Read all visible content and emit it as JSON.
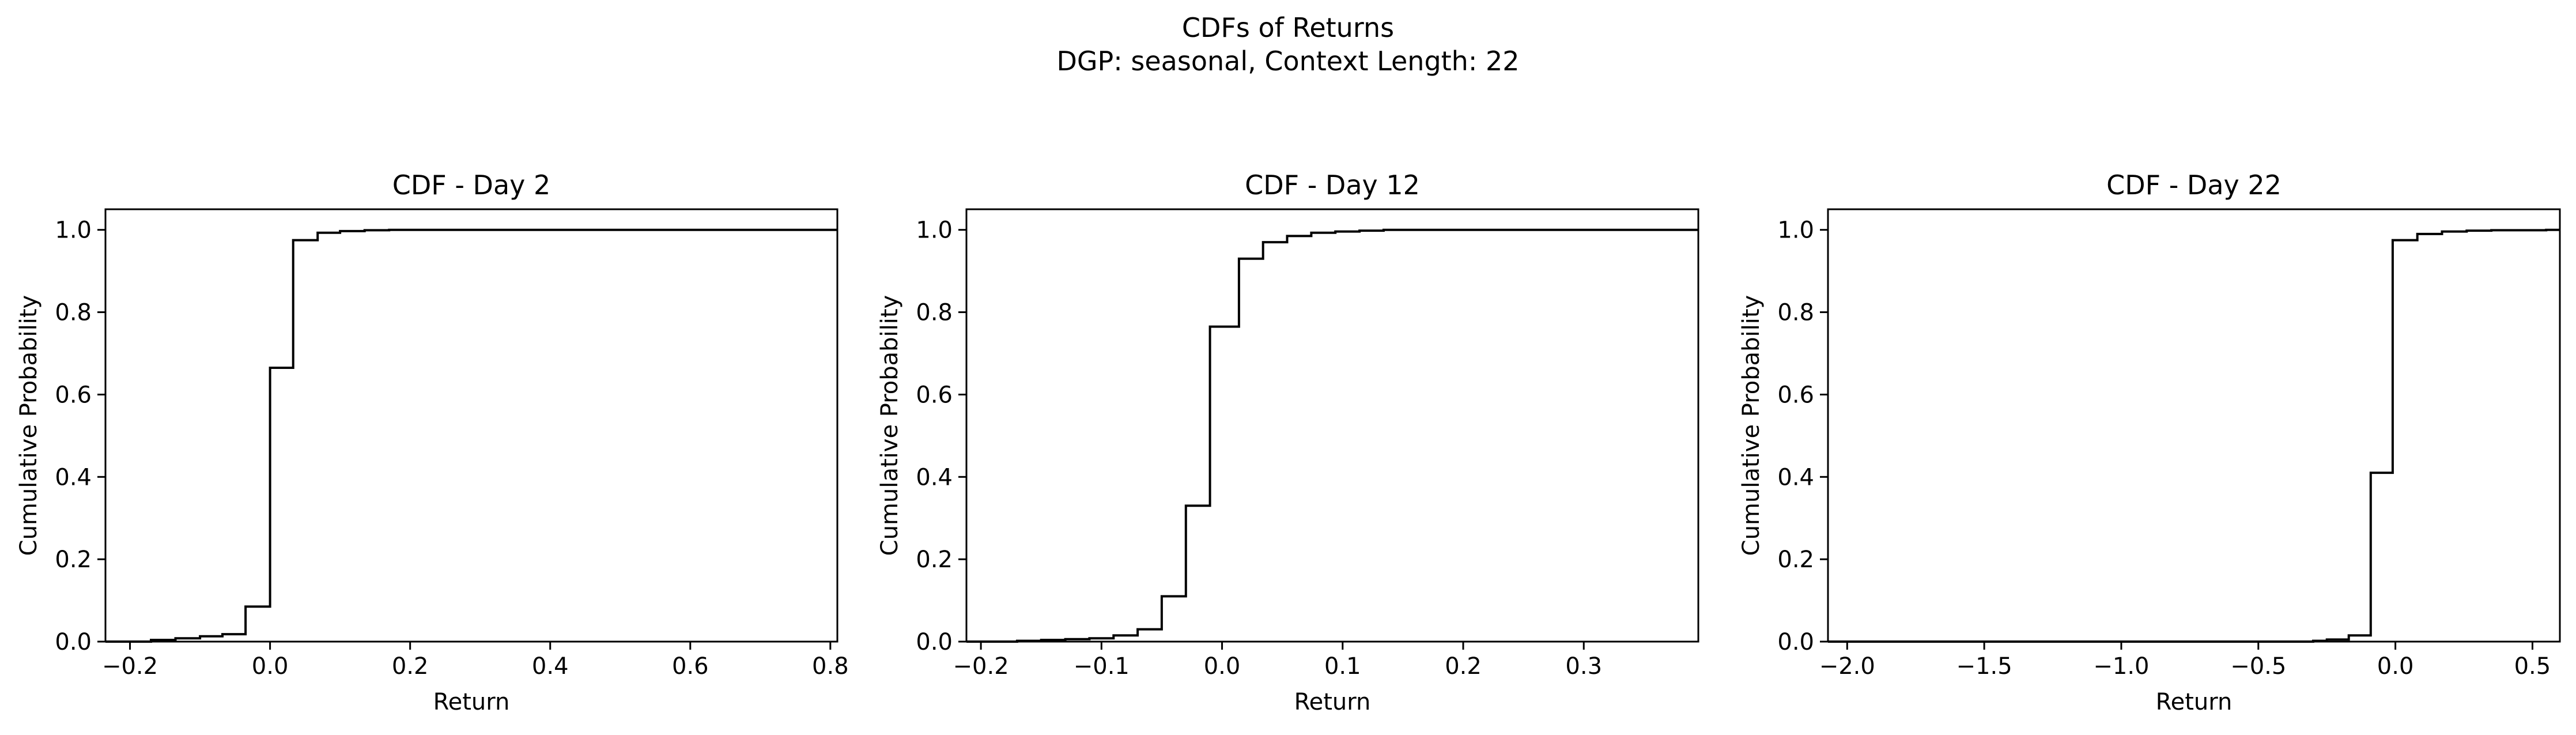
{
  "figure": {
    "title_line1": "CDFs of Returns",
    "title_line2": "DGP: seasonal, Context Length: 22"
  },
  "chart_data": [
    {
      "type": "line",
      "step": "post",
      "title": "CDF - Day 2",
      "xlabel": "Return",
      "ylabel": "Cumulative Probability",
      "xlim": [
        -0.235,
        0.81
      ],
      "ylim": [
        0,
        1.05
      ],
      "xticks": [
        -0.2,
        0.0,
        0.2,
        0.4,
        0.6,
        0.8
      ],
      "xtick_labels": [
        "−0.2",
        "0.0",
        "0.2",
        "0.4",
        "0.6",
        "0.8"
      ],
      "yticks": [
        0.0,
        0.2,
        0.4,
        0.6,
        0.8,
        1.0
      ],
      "ytick_labels": [
        "0.0",
        "0.2",
        "0.4",
        "0.6",
        "0.8",
        "1.0"
      ],
      "grid": false,
      "series": [
        {
          "color": "#000000",
          "x": [
            -0.235,
            -0.2,
            -0.17,
            -0.135,
            -0.1,
            -0.068,
            -0.035,
            0.0,
            0.033,
            0.068,
            0.1,
            0.135,
            0.17,
            0.78,
            0.81
          ],
          "y": [
            0.0,
            0.0,
            0.004,
            0.008,
            0.013,
            0.018,
            0.085,
            0.665,
            0.975,
            0.993,
            0.997,
            0.999,
            1.0,
            1.0,
            1.0
          ]
        }
      ]
    },
    {
      "type": "line",
      "step": "post",
      "title": "CDF - Day 12",
      "xlabel": "Return",
      "ylabel": "Cumulative Probability",
      "xlim": [
        -0.212,
        0.395
      ],
      "ylim": [
        0,
        1.05
      ],
      "xticks": [
        -0.2,
        -0.1,
        0.0,
        0.1,
        0.2,
        0.3
      ],
      "xtick_labels": [
        "−0.2",
        "−0.1",
        "0.0",
        "0.1",
        "0.2",
        "0.3"
      ],
      "yticks": [
        0.0,
        0.2,
        0.4,
        0.6,
        0.8,
        1.0
      ],
      "ytick_labels": [
        "0.0",
        "0.2",
        "0.4",
        "0.6",
        "0.8",
        "1.0"
      ],
      "grid": false,
      "series": [
        {
          "color": "#000000",
          "x": [
            -0.212,
            -0.17,
            -0.15,
            -0.13,
            -0.11,
            -0.09,
            -0.07,
            -0.05,
            -0.03,
            -0.01,
            0.014,
            0.034,
            0.054,
            0.074,
            0.094,
            0.114,
            0.134,
            0.38,
            0.395
          ],
          "y": [
            0.0,
            0.002,
            0.004,
            0.006,
            0.008,
            0.015,
            0.03,
            0.11,
            0.33,
            0.765,
            0.93,
            0.97,
            0.985,
            0.993,
            0.996,
            0.998,
            1.0,
            1.0,
            1.0
          ]
        }
      ]
    },
    {
      "type": "line",
      "step": "post",
      "title": "CDF - Day 22",
      "xlabel": "Return",
      "ylabel": "Cumulative Probability",
      "xlim": [
        -2.07,
        0.6
      ],
      "ylim": [
        0,
        1.05
      ],
      "xticks": [
        -2.0,
        -1.5,
        -1.0,
        -0.5,
        0.0,
        0.5
      ],
      "xtick_labels": [
        "−2.0",
        "−1.5",
        "−1.0",
        "−0.5",
        "0.0",
        "0.5"
      ],
      "yticks": [
        0.0,
        0.2,
        0.4,
        0.6,
        0.8,
        1.0
      ],
      "ytick_labels": [
        "0.0",
        "0.2",
        "0.4",
        "0.6",
        "0.8",
        "1.0"
      ],
      "grid": false,
      "series": [
        {
          "color": "#000000",
          "x": [
            -2.07,
            -0.3,
            -0.25,
            -0.17,
            -0.09,
            -0.01,
            0.08,
            0.17,
            0.26,
            0.35,
            0.55,
            0.6
          ],
          "y": [
            0.0,
            0.002,
            0.005,
            0.015,
            0.41,
            0.975,
            0.99,
            0.996,
            0.998,
            0.999,
            1.0,
            1.0
          ]
        }
      ]
    }
  ]
}
